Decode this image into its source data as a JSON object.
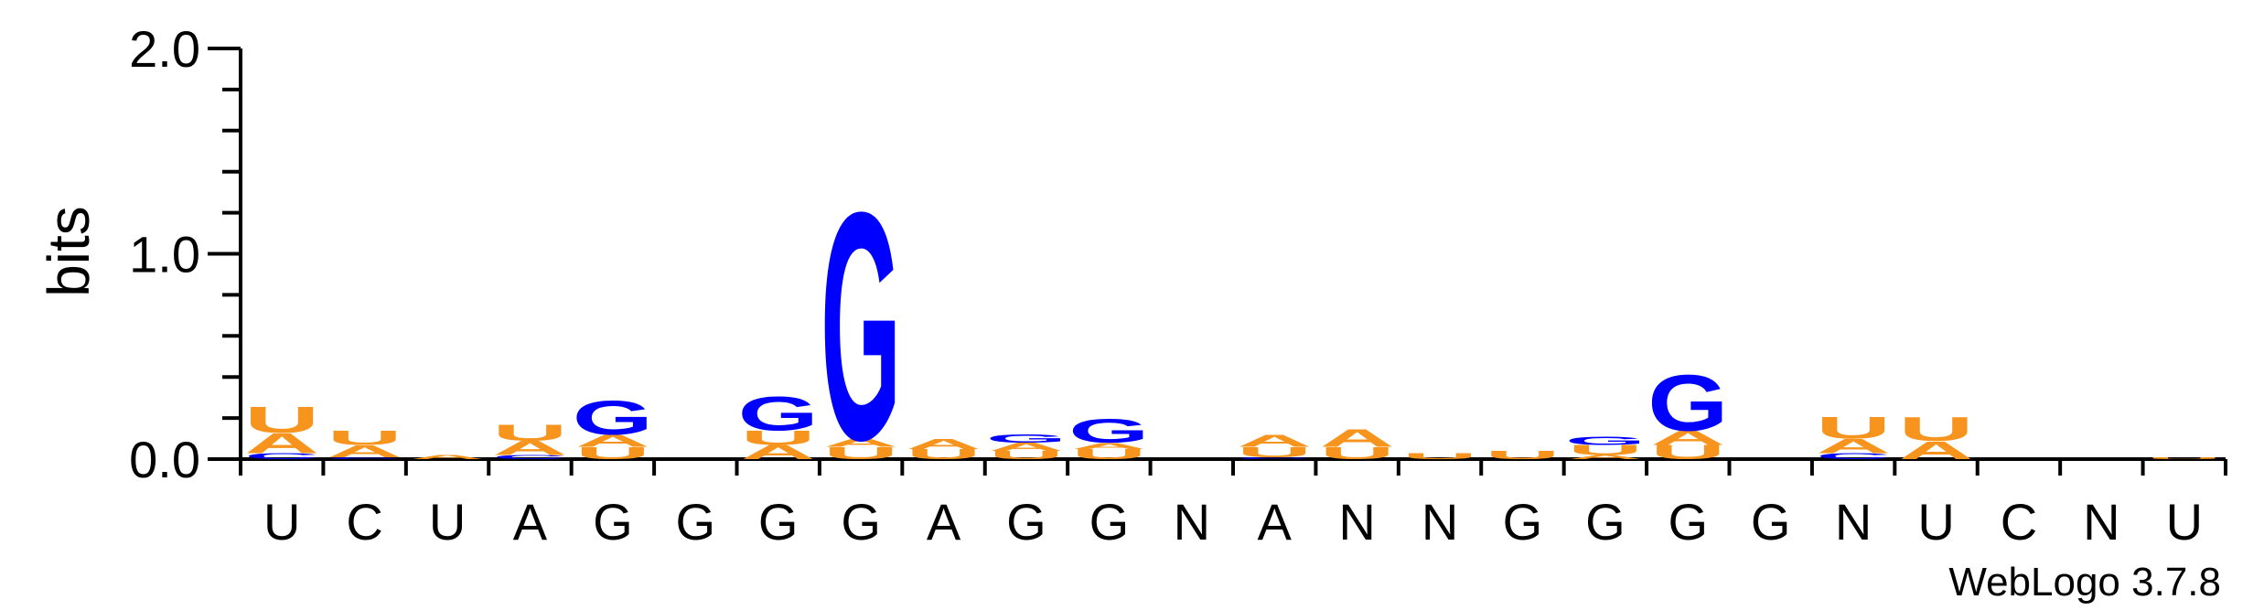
{
  "chart_data": {
    "type": "sequence-logo",
    "ylabel": "bits",
    "ylim": [
      0,
      2.0
    ],
    "y_ticks": [
      "0.0",
      "1.0",
      "2.0"
    ],
    "positions": [
      "U",
      "C",
      "U",
      "A",
      "G",
      "G",
      "G",
      "G",
      "A",
      "G",
      "G",
      "N",
      "A",
      "N",
      "N",
      "G",
      "G",
      "G",
      "G",
      "N",
      "U",
      "C",
      "N",
      "U"
    ],
    "colors": {
      "A": "#f7941d",
      "U": "#f7941d",
      "G": "#0000ff",
      "C": "#0000ff"
    },
    "stacks": [
      [
        [
          "C",
          0.03
        ],
        [
          "A",
          0.1
        ],
        [
          "U",
          0.13
        ]
      ],
      [
        [
          "C",
          0.01
        ],
        [
          "A",
          0.06
        ],
        [
          "U",
          0.07
        ]
      ],
      [
        [
          "A",
          0.02
        ]
      ],
      [
        [
          "C",
          0.02
        ],
        [
          "A",
          0.07
        ],
        [
          "U",
          0.08
        ]
      ],
      [
        [
          "U",
          0.06
        ],
        [
          "A",
          0.06
        ],
        [
          "G",
          0.17
        ]
      ],
      [],
      [
        [
          "A",
          0.07
        ],
        [
          "U",
          0.07
        ],
        [
          "G",
          0.17
        ]
      ],
      [
        [
          "U",
          0.06
        ],
        [
          "A",
          0.04
        ],
        [
          "G",
          1.14
        ]
      ],
      [
        [
          "U",
          0.05
        ],
        [
          "A",
          0.05
        ]
      ],
      [
        [
          "U",
          0.04
        ],
        [
          "A",
          0.04
        ],
        [
          "G",
          0.04
        ]
      ],
      [
        [
          "U",
          0.05
        ],
        [
          "A",
          0.03
        ],
        [
          "G",
          0.12
        ]
      ],
      [],
      [
        [
          "C",
          0.01
        ],
        [
          "U",
          0.05
        ],
        [
          "A",
          0.06
        ]
      ],
      [
        [
          "U",
          0.06
        ],
        [
          "A",
          0.09
        ]
      ],
      [
        [
          "U",
          0.03
        ]
      ],
      [
        [
          "U",
          0.04
        ]
      ],
      [
        [
          "A",
          0.02
        ],
        [
          "U",
          0.05
        ],
        [
          "G",
          0.04
        ]
      ],
      [
        [
          "U",
          0.07
        ],
        [
          "A",
          0.07
        ],
        [
          "G",
          0.28
        ]
      ],
      [],
      [
        [
          "C",
          0.03
        ],
        [
          "A",
          0.07
        ],
        [
          "U",
          0.11
        ]
      ],
      [
        [
          "A",
          0.09
        ],
        [
          "U",
          0.12
        ]
      ],
      [],
      [],
      [
        [
          "U",
          0.01
        ]
      ]
    ]
  },
  "footer": {
    "credit": "WebLogo 3.7.8"
  }
}
